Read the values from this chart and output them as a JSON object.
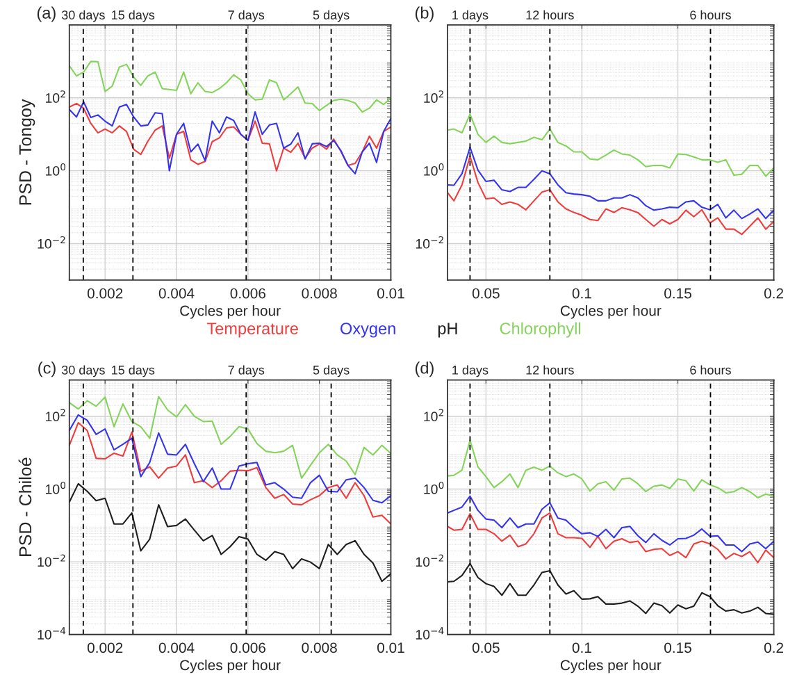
{
  "chart_data": [
    {
      "type": "line",
      "title": "(a)",
      "xlabel": "Cycles per hour",
      "ylabel": "PSD - Tongoy",
      "log": "y",
      "grid": true,
      "xlim": [
        0.001,
        0.01
      ],
      "xticks": [
        0.002,
        0.004,
        0.006,
        0.008,
        0.01
      ],
      "ylim": [
        0.001,
        10000
      ],
      "yticks": [
        {
          "value": 0.01,
          "label": "10$^{−2}$"
        },
        {
          "value": 1,
          "label": "10$^{0}$"
        },
        {
          "value": 100,
          "label": "10$^{2}$"
        }
      ],
      "ref_lines": [
        {
          "axis": "x",
          "value": 0.00139,
          "label": "30 days",
          "line_style": "dashed",
          "color": "#000000"
        },
        {
          "axis": "x",
          "value": 0.00278,
          "label": "15 days",
          "line_style": "dashed",
          "color": "#000000"
        },
        {
          "axis": "x",
          "value": 0.00595,
          "label": "7 days",
          "line_style": "dashed",
          "color": "#000000"
        },
        {
          "axis": "x",
          "value": 0.00833,
          "label": "5 days",
          "line_style": "dashed",
          "color": "#000000"
        }
      ],
      "x": [
        0.001,
        0.0012,
        0.0014,
        0.0016,
        0.0018,
        0.002,
        0.0022,
        0.0024,
        0.0026,
        0.0028,
        0.003,
        0.0032,
        0.0034,
        0.0036,
        0.0038,
        0.004,
        0.0042,
        0.0044,
        0.0046,
        0.0048,
        0.005,
        0.0052,
        0.0054,
        0.0056,
        0.0058,
        0.006,
        0.0062,
        0.0064,
        0.0066,
        0.0068,
        0.007,
        0.0072,
        0.0074,
        0.0076,
        0.0078,
        0.008,
        0.0082,
        0.0084,
        0.0086,
        0.0088,
        0.009,
        0.0092,
        0.0094,
        0.0096,
        0.0098,
        0.01
      ],
      "series": [
        {
          "color": "#f03c3c",
          "values": [
            56,
            70,
            52,
            20,
            11,
            14,
            11,
            17,
            12,
            3.9,
            2.8,
            6.5,
            13,
            17,
            2.2,
            10,
            12,
            2.0,
            1.5,
            1.8,
            6.3,
            8,
            15,
            16,
            10,
            6.8,
            23,
            5.7,
            5.5,
            1.0,
            4.2,
            3.2,
            5.7,
            2.2,
            4.2,
            5.4,
            3.9,
            7.4,
            3.4,
            1.4,
            1.6,
            3.3,
            8.9,
            4.2,
            12,
            16
          ]
        },
        {
          "color": "#3434f0",
          "values": [
            48,
            30,
            78,
            29,
            34,
            23,
            17,
            56,
            66,
            30,
            17,
            18,
            39,
            37,
            1.0,
            10,
            20,
            3.3,
            5.4,
            1.9,
            23,
            11,
            30,
            24,
            10,
            6.8,
            41,
            10,
            18,
            20,
            4.2,
            5.4,
            11,
            2.1,
            5.5,
            5.7,
            4.6,
            6.8,
            3.6,
            1.4,
            0.83,
            3.3,
            5.7,
            1.7,
            12,
            27
          ]
        },
        {
          "color": "#84d45a",
          "values": [
            760,
            400,
            510,
            1000,
            980,
            150,
            210,
            700,
            830,
            370,
            220,
            400,
            510,
            180,
            170,
            160,
            510,
            130,
            260,
            150,
            140,
            180,
            260,
            430,
            310,
            130,
            88,
            92,
            310,
            260,
            88,
            130,
            200,
            72,
            70,
            45,
            62,
            85,
            92,
            85,
            72,
            41,
            52,
            88,
            66,
            100
          ]
        }
      ]
    },
    {
      "type": "line",
      "title": "(b)",
      "xlabel": "Cycles per hour",
      "log": "y",
      "grid": true,
      "xlim": [
        0.03,
        0.2
      ],
      "xticks": [
        0.05,
        0.1,
        0.15,
        0.2
      ],
      "ylim": [
        0.001,
        10000
      ],
      "yticks": [
        {
          "value": 0.01,
          "label": "10$^{−2}$"
        },
        {
          "value": 1,
          "label": "10$^{0}$"
        },
        {
          "value": 100,
          "label": "10$^{2}$"
        }
      ],
      "ref_lines": [
        {
          "axis": "x",
          "value": 0.0417,
          "label": "1 days",
          "line_style": "dashed",
          "color": "#000000"
        },
        {
          "axis": "x",
          "value": 0.0833,
          "label": "12 hours",
          "line_style": "dashed",
          "color": "#000000"
        },
        {
          "axis": "x",
          "value": 0.167,
          "label": "6 hours",
          "line_style": "dashed",
          "color": "#000000"
        }
      ],
      "x": [
        0.03,
        0.0333,
        0.0375,
        0.0417,
        0.0458,
        0.05,
        0.0542,
        0.0583,
        0.0625,
        0.0667,
        0.0708,
        0.075,
        0.0792,
        0.0833,
        0.0875,
        0.0917,
        0.0958,
        0.1,
        0.1042,
        0.1083,
        0.1125,
        0.1167,
        0.1208,
        0.125,
        0.1292,
        0.1333,
        0.1375,
        0.1417,
        0.1458,
        0.15,
        0.1542,
        0.1583,
        0.1625,
        0.1667,
        0.1708,
        0.175,
        0.1792,
        0.1833,
        0.1875,
        0.1917,
        0.1958,
        0.2
      ],
      "series": [
        {
          "color": "#f03c3c",
          "values": [
            0.25,
            0.15,
            0.41,
            2.5,
            0.48,
            0.17,
            0.18,
            0.12,
            0.14,
            0.12,
            0.085,
            0.15,
            0.26,
            0.3,
            0.14,
            0.09,
            0.072,
            0.06,
            0.046,
            0.043,
            0.09,
            0.072,
            0.097,
            0.085,
            0.071,
            0.046,
            0.03,
            0.046,
            0.035,
            0.046,
            0.083,
            0.055,
            0.085,
            0.037,
            0.051,
            0.025,
            0.025,
            0.018,
            0.03,
            0.051,
            0.025,
            0.041
          ]
        },
        {
          "color": "#3434f0",
          "values": [
            0.41,
            0.4,
            0.83,
            4.4,
            1.05,
            0.51,
            0.55,
            0.3,
            0.27,
            0.35,
            0.35,
            0.58,
            1.0,
            0.83,
            0.41,
            0.25,
            0.23,
            0.22,
            0.2,
            0.15,
            0.15,
            0.18,
            0.18,
            0.22,
            0.18,
            0.11,
            0.083,
            0.09,
            0.1,
            0.097,
            0.14,
            0.15,
            0.1,
            0.085,
            0.12,
            0.051,
            0.083,
            0.049,
            0.065,
            0.09,
            0.049,
            0.083
          ]
        },
        {
          "color": "#84d45a",
          "values": [
            13,
            14,
            11,
            36,
            10,
            6.0,
            8.9,
            6.0,
            5.5,
            6.0,
            6.5,
            8.3,
            7.1,
            14,
            6.0,
            4.8,
            3.3,
            3.3,
            2.1,
            2.0,
            2.7,
            3.7,
            2.9,
            2.7,
            2.0,
            1.3,
            1.4,
            1.4,
            1.2,
            2.9,
            2.8,
            2.4,
            2.0,
            2.0,
            1.7,
            2.0,
            0.76,
            0.8,
            1.4,
            1.4,
            0.71,
            1.2
          ]
        }
      ]
    },
    {
      "type": "line",
      "title": "(c)",
      "xlabel": "Cycles per hour",
      "ylabel": "PSD - Chiloé",
      "log": "y",
      "grid": true,
      "legend": "top",
      "xlim": [
        0.001,
        0.01
      ],
      "xticks": [
        0.002,
        0.004,
        0.006,
        0.008,
        0.01
      ],
      "ylim": [
        0.0001,
        1000
      ],
      "yticks": [
        {
          "value": 0.0001,
          "label": "10$^{−4}$"
        },
        {
          "value": 0.01,
          "label": "10$^{−2}$"
        },
        {
          "value": 1,
          "label": "10$^{0}$"
        },
        {
          "value": 100,
          "label": "10$^{2}$"
        }
      ],
      "ref_lines": [
        {
          "axis": "x",
          "value": 0.00139,
          "label": "30 days",
          "line_style": "dashed",
          "color": "#000000"
        },
        {
          "axis": "x",
          "value": 0.00278,
          "label": "15 days",
          "line_style": "dashed",
          "color": "#000000"
        },
        {
          "axis": "x",
          "value": 0.00595,
          "label": "7 days",
          "line_style": "dashed",
          "color": "#000000"
        },
        {
          "axis": "x",
          "value": 0.00833,
          "label": "5 days",
          "line_style": "dashed",
          "color": "#000000"
        }
      ],
      "x": [
        0.001,
        0.00125,
        0.0015,
        0.00175,
        0.002,
        0.00225,
        0.0025,
        0.00275,
        0.003,
        0.00325,
        0.0035,
        0.00375,
        0.004,
        0.00425,
        0.0045,
        0.00475,
        0.005,
        0.00525,
        0.0055,
        0.00575,
        0.006,
        0.00625,
        0.0065,
        0.00675,
        0.007,
        0.00725,
        0.0075,
        0.00775,
        0.008,
        0.00825,
        0.0085,
        0.00875,
        0.009,
        0.00925,
        0.0095,
        0.00975,
        0.01
      ],
      "series": [
        {
          "name": "Temperature",
          "color": "#f03c3c",
          "values": [
            16,
            67,
            41,
            7.0,
            6.8,
            9.7,
            8.1,
            37,
            3.1,
            4.1,
            2.0,
            3.8,
            4.3,
            8.7,
            1.5,
            1.7,
            1.1,
            1.7,
            3.1,
            3.3,
            3.2,
            3.9,
            1.1,
            0.56,
            0.71,
            0.39,
            0.37,
            0.51,
            0.66,
            1.1,
            1.3,
            0.56,
            1.5,
            0.66,
            0.17,
            0.19,
            0.11
          ]
        },
        {
          "name": "Oxygen",
          "color": "#3434f0",
          "values": [
            41,
            110,
            78,
            32,
            45,
            12,
            17,
            25,
            2.2,
            5.4,
            35,
            9.1,
            8.7,
            17,
            5.0,
            1.6,
            3.8,
            1.0,
            1.0,
            4.3,
            5.0,
            5.4,
            1.3,
            1.5,
            1.0,
            0.6,
            0.56,
            1.5,
            2.4,
            0.87,
            0.84,
            1.8,
            2.0,
            1.1,
            0.49,
            0.42,
            0.66
          ]
        },
        {
          "name": "pH",
          "color": "#1e1e1e",
          "values": [
            0.44,
            1.4,
            0.87,
            0.48,
            0.56,
            0.11,
            0.11,
            0.22,
            0.02,
            0.042,
            0.37,
            0.093,
            0.1,
            0.15,
            0.074,
            0.038,
            0.053,
            0.016,
            0.026,
            0.049,
            0.042,
            0.016,
            0.011,
            0.019,
            0.016,
            0.0065,
            0.012,
            0.0098,
            0.0065,
            0.03,
            0.016,
            0.03,
            0.038,
            0.016,
            0.0092,
            0.0029,
            0.0047
          ]
        },
        {
          "name": "Chlorophyll",
          "color": "#84d45a",
          "values": [
            240,
            160,
            270,
            190,
            340,
            52,
            220,
            72,
            52,
            25,
            350,
            150,
            97,
            210,
            100,
            72,
            74,
            17,
            28,
            52,
            45,
            18,
            11,
            10,
            11,
            16,
            2.0,
            4.5,
            10,
            17,
            8.7,
            5.9,
            2.5,
            14,
            8.7,
            16,
            9.5
          ]
        }
      ]
    },
    {
      "type": "line",
      "title": "(d)",
      "xlabel": "Cycles per hour",
      "log": "y",
      "grid": true,
      "xlim": [
        0.03,
        0.2
      ],
      "xticks": [
        0.05,
        0.1,
        0.15,
        0.2
      ],
      "ylim": [
        0.0001,
        1000
      ],
      "yticks": [
        {
          "value": 0.0001,
          "label": "10$^{−4}$"
        },
        {
          "value": 0.01,
          "label": "10$^{−2}$"
        },
        {
          "value": 1,
          "label": "10$^{0}$"
        },
        {
          "value": 100,
          "label": "10$^{2}$"
        }
      ],
      "ref_lines": [
        {
          "axis": "x",
          "value": 0.0417,
          "label": "1 days",
          "line_style": "dashed",
          "color": "#000000"
        },
        {
          "axis": "x",
          "value": 0.0833,
          "label": "12 hours",
          "line_style": "dashed",
          "color": "#000000"
        },
        {
          "axis": "x",
          "value": 0.167,
          "label": "6 hours",
          "line_style": "dashed",
          "color": "#000000"
        }
      ],
      "x": [
        0.03,
        0.0333,
        0.0375,
        0.0417,
        0.0458,
        0.05,
        0.0542,
        0.0583,
        0.0625,
        0.0667,
        0.0708,
        0.075,
        0.0792,
        0.0833,
        0.0875,
        0.0917,
        0.0958,
        0.1,
        0.1042,
        0.1083,
        0.1125,
        0.1167,
        0.1208,
        0.125,
        0.1292,
        0.1333,
        0.1375,
        0.1417,
        0.1458,
        0.15,
        0.1542,
        0.1583,
        0.1625,
        0.1667,
        0.1708,
        0.175,
        0.1792,
        0.1833,
        0.1875,
        0.1917,
        0.1958,
        0.2
      ],
      "series": [
        {
          "color": "#f03c3c",
          "values": [
            0.094,
            0.074,
            0.078,
            0.21,
            0.078,
            0.078,
            0.059,
            0.037,
            0.054,
            0.026,
            0.031,
            0.059,
            0.16,
            0.22,
            0.059,
            0.046,
            0.046,
            0.044,
            0.025,
            0.05,
            0.023,
            0.037,
            0.043,
            0.034,
            0.037,
            0.019,
            0.022,
            0.023,
            0.015,
            0.019,
            0.013,
            0.031,
            0.037,
            0.031,
            0.022,
            0.012,
            0.017,
            0.014,
            0.019,
            0.0095,
            0.021,
            0.013
          ]
        },
        {
          "color": "#3434f0",
          "values": [
            0.22,
            0.26,
            0.32,
            0.64,
            0.26,
            0.15,
            0.14,
            0.087,
            0.16,
            0.087,
            0.11,
            0.11,
            0.28,
            0.42,
            0.16,
            0.14,
            0.087,
            0.059,
            0.063,
            0.05,
            0.078,
            0.046,
            0.087,
            0.094,
            0.052,
            0.034,
            0.059,
            0.039,
            0.029,
            0.043,
            0.044,
            0.054,
            0.08,
            0.05,
            0.052,
            0.029,
            0.029,
            0.019,
            0.031,
            0.035,
            0.023,
            0.037
          ]
        },
        {
          "color": "#1e1e1e",
          "values": [
            0.0028,
            0.0029,
            0.0042,
            0.0089,
            0.0037,
            0.0025,
            0.0021,
            0.0012,
            0.0025,
            0.0012,
            0.0012,
            0.0023,
            0.0051,
            0.0057,
            0.0023,
            0.0013,
            0.0016,
            0.00094,
            0.00096,
            0.0011,
            0.00069,
            0.00069,
            0.00073,
            0.00084,
            0.0006,
            0.00038,
            0.00073,
            0.00062,
            0.00039,
            0.00065,
            0.00051,
            0.0006,
            0.0014,
            0.0011,
            0.00062,
            0.00044,
            0.00048,
            0.00039,
            0.00044,
            0.00056,
            0.00038,
            0.00036
          ]
        },
        {
          "color": "#84d45a",
          "values": [
            2.3,
            2.4,
            3.3,
            22,
            4.1,
            2.2,
            1.1,
            1.6,
            2.6,
            1.1,
            3.3,
            4.0,
            3.3,
            4.3,
            2.8,
            2.2,
            2.6,
            1.9,
            0.88,
            1.4,
            1.6,
            0.93,
            1.9,
            2.0,
            1.4,
            0.85,
            1.2,
            1.3,
            1.05,
            1.9,
            1.7,
            0.88,
            1.8,
            1.3,
            1.1,
            0.79,
            0.85,
            1.1,
            0.85,
            0.58,
            0.73,
            0.64
          ]
        }
      ]
    }
  ]
}
